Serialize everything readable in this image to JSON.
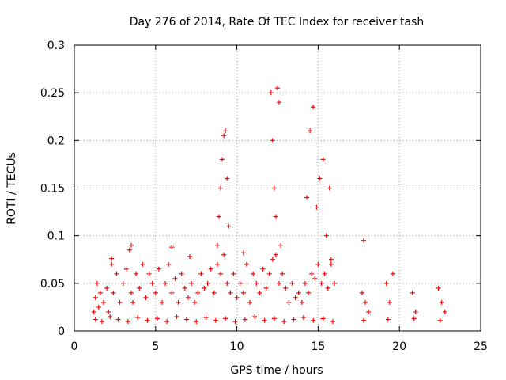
{
  "chart_data": {
    "type": "scatter",
    "title": "Day 276 of 2014, Rate Of TEC Index for receiver tash",
    "xlabel": "GPS time / hours",
    "ylabel": "ROTI / TECUs",
    "xlim": [
      0,
      25
    ],
    "ylim": [
      0,
      0.3
    ],
    "xticks": [
      0,
      5,
      10,
      15,
      20,
      25
    ],
    "xtick_labels": [
      "0",
      "5",
      "10",
      "15",
      "20",
      "25"
    ],
    "yticks": [
      0,
      0.05,
      0.1,
      0.15,
      0.2,
      0.25,
      0.3
    ],
    "ytick_labels": [
      "0",
      "0.05",
      "0.1",
      "0.15",
      "0.2",
      "0.25",
      "0.3"
    ],
    "grid": true,
    "marker": "+",
    "series_color": "#ff0000",
    "series": [
      {
        "name": "ROTI",
        "x": [
          1.2,
          1.3,
          1.4,
          1.5,
          1.6,
          1.8,
          2.0,
          2.1,
          2.3,
          2.4,
          2.6,
          2.8,
          3.0,
          3.2,
          3.4,
          3.5,
          3.6,
          3.8,
          4.0,
          4.2,
          4.4,
          4.6,
          4.8,
          5.0,
          5.2,
          5.4,
          5.6,
          5.8,
          6.0,
          6.2,
          6.4,
          6.6,
          6.8,
          7.0,
          7.2,
          7.4,
          7.6,
          7.8,
          8.0,
          8.2,
          8.4,
          8.6,
          8.8,
          9.0,
          9.2,
          9.4,
          9.6,
          9.8,
          10.0,
          10.2,
          10.4,
          10.6,
          10.8,
          11.0,
          11.2,
          11.4,
          11.6,
          11.8,
          12.0,
          12.2,
          12.4,
          12.6,
          12.8,
          13.0,
          13.2,
          13.4,
          13.6,
          13.8,
          14.0,
          14.2,
          14.4,
          14.6,
          14.8,
          15.0,
          15.2,
          15.4,
          15.6,
          15.8,
          16.0,
          17.7,
          17.9,
          18.1,
          19.2,
          19.4,
          19.6,
          20.8,
          21.0,
          22.4,
          22.6,
          22.8,
          8.8,
          8.9,
          9.0,
          9.1,
          9.2,
          9.3,
          9.4,
          9.5,
          12.1,
          12.2,
          12.3,
          12.4,
          12.5,
          12.6,
          12.7,
          14.3,
          14.5,
          14.7,
          14.9,
          15.1,
          15.3,
          15.5,
          15.7,
          15.8,
          17.8,
          3.5,
          6.0,
          7.1,
          10.4,
          2.3,
          1.3,
          1.7,
          2.2,
          2.7,
          3.3,
          3.9,
          4.5,
          5.1,
          5.7,
          6.3,
          6.9,
          7.5,
          8.1,
          8.7,
          9.3,
          9.9,
          10.5,
          11.1,
          11.7,
          12.3,
          12.9,
          13.5,
          14.1,
          14.7,
          15.3,
          15.9,
          17.8,
          19.3,
          20.9,
          22.5
        ],
        "y": [
          0.02,
          0.035,
          0.05,
          0.025,
          0.04,
          0.03,
          0.045,
          0.02,
          0.07,
          0.04,
          0.06,
          0.03,
          0.05,
          0.065,
          0.085,
          0.04,
          0.03,
          0.06,
          0.045,
          0.07,
          0.035,
          0.06,
          0.05,
          0.04,
          0.065,
          0.03,
          0.05,
          0.07,
          0.04,
          0.055,
          0.03,
          0.06,
          0.045,
          0.035,
          0.05,
          0.03,
          0.04,
          0.06,
          0.045,
          0.05,
          0.065,
          0.04,
          0.07,
          0.06,
          0.08,
          0.05,
          0.04,
          0.06,
          0.035,
          0.05,
          0.04,
          0.07,
          0.03,
          0.06,
          0.05,
          0.04,
          0.065,
          0.045,
          0.06,
          0.075,
          0.08,
          0.05,
          0.06,
          0.045,
          0.03,
          0.05,
          0.035,
          0.04,
          0.03,
          0.05,
          0.04,
          0.06,
          0.055,
          0.07,
          0.05,
          0.06,
          0.045,
          0.07,
          0.05,
          0.04,
          0.03,
          0.02,
          0.05,
          0.03,
          0.06,
          0.04,
          0.02,
          0.045,
          0.03,
          0.02,
          0.09,
          0.12,
          0.15,
          0.18,
          0.205,
          0.21,
          0.16,
          0.11,
          0.25,
          0.2,
          0.15,
          0.12,
          0.255,
          0.24,
          0.09,
          0.14,
          0.21,
          0.235,
          0.13,
          0.16,
          0.18,
          0.1,
          0.15,
          0.075,
          0.095,
          0.09,
          0.088,
          0.078,
          0.082,
          0.076,
          0.012,
          0.01,
          0.015,
          0.012,
          0.01,
          0.014,
          0.011,
          0.013,
          0.01,
          0.015,
          0.012,
          0.01,
          0.014,
          0.011,
          0.013,
          0.01,
          0.012,
          0.015,
          0.011,
          0.013,
          0.01,
          0.012,
          0.014,
          0.011,
          0.013,
          0.01,
          0.011,
          0.012,
          0.013,
          0.011
        ]
      }
    ]
  }
}
